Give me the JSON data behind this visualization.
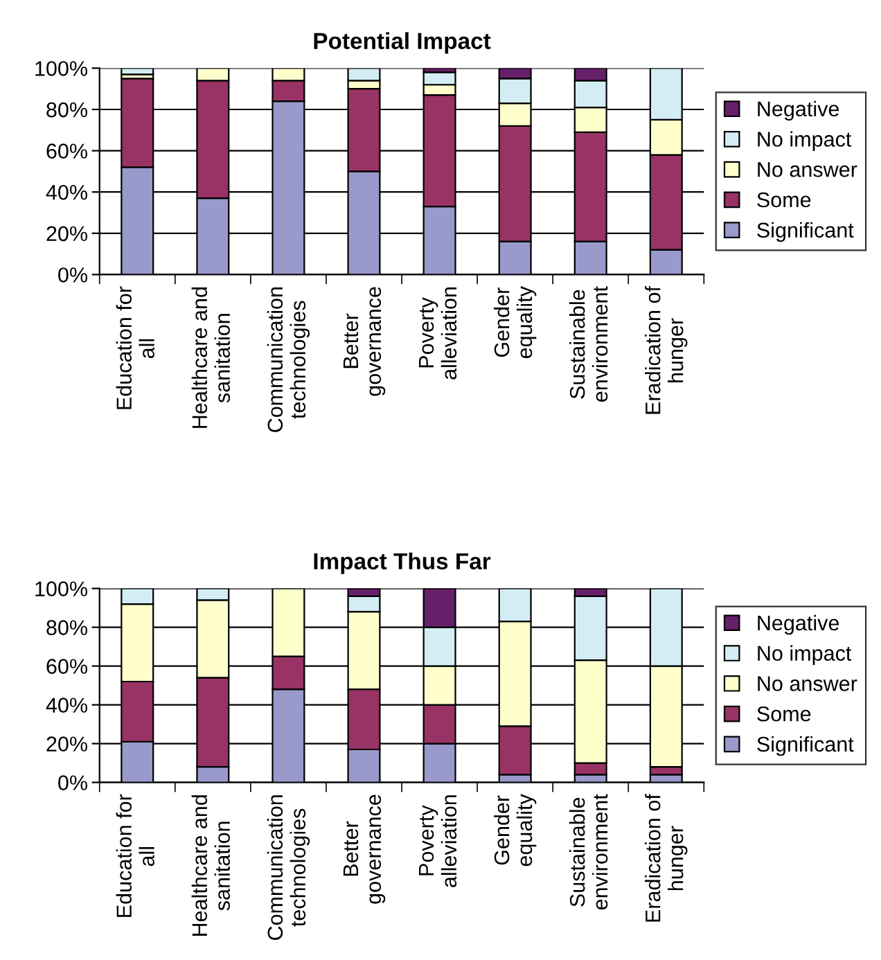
{
  "chart_data": [
    {
      "type": "bar",
      "title": "Potential Impact",
      "stacked": true,
      "grid": "y",
      "legend": "right",
      "categories": [
        "Education for\nall",
        "Healthcare and\nsanitation",
        "Communication\ntechnologies",
        "Better\ngovernance",
        "Poverty\nalleviation",
        "Gender\nequality",
        "Sustainable\nenvironment",
        "Eradication of\nhunger"
      ],
      "series": [
        {
          "name": "Significant",
          "color": "#9999cc",
          "values": [
            52,
            37,
            84,
            50,
            33,
            16,
            16,
            12
          ]
        },
        {
          "name": "Some",
          "color": "#993366",
          "values": [
            43,
            57,
            10,
            40,
            54,
            56,
            53,
            46
          ]
        },
        {
          "name": "No answer",
          "color": "#ffffcc",
          "values": [
            2,
            6,
            6,
            4,
            5,
            11,
            12,
            17
          ]
        },
        {
          "name": "No impact",
          "color": "#d4edf4",
          "values": [
            3,
            null,
            null,
            6,
            6,
            12,
            13,
            25
          ]
        },
        {
          "name": "Negative",
          "color": "#66206a",
          "values": [
            null,
            null,
            null,
            null,
            2,
            5,
            6,
            null
          ]
        }
      ],
      "ylim": [
        0,
        100
      ],
      "yticks": [
        {
          "value": 0,
          "label": "0%"
        },
        {
          "value": 20,
          "label": "20%"
        },
        {
          "value": 40,
          "label": "40%"
        },
        {
          "value": 60,
          "label": "60%"
        },
        {
          "value": 80,
          "label": "80%"
        },
        {
          "value": 100,
          "label": "100%"
        }
      ]
    },
    {
      "type": "bar",
      "title": "Impact Thus Far",
      "stacked": true,
      "grid": "y",
      "legend": "right",
      "categories": [
        "Education for\nall",
        "Healthcare and\nsanitation",
        "Communication\ntechnologies",
        "Better\ngovernance",
        "Poverty\nalleviation",
        "Gender\nequality",
        "Sustainable\nenvironment",
        "Eradication of\nhunger"
      ],
      "series": [
        {
          "name": "Significant",
          "color": "#9999cc",
          "values": [
            21,
            8,
            48,
            17,
            20,
            4,
            4,
            4
          ]
        },
        {
          "name": "Some",
          "color": "#993366",
          "values": [
            31,
            46,
            17,
            31,
            20,
            25,
            6,
            4
          ]
        },
        {
          "name": "No answer",
          "color": "#ffffcc",
          "values": [
            40,
            40,
            35,
            40,
            20,
            54,
            53,
            52
          ]
        },
        {
          "name": "No impact",
          "color": "#d4edf4",
          "values": [
            8,
            6,
            null,
            8,
            20,
            17,
            33,
            40
          ]
        },
        {
          "name": "Negative",
          "color": "#66206a",
          "values": [
            null,
            null,
            null,
            4,
            20,
            null,
            4,
            null
          ]
        }
      ],
      "ylim": [
        0,
        100
      ],
      "yticks": [
        {
          "value": 0,
          "label": "0%"
        },
        {
          "value": 20,
          "label": "20%"
        },
        {
          "value": 40,
          "label": "40%"
        },
        {
          "value": 60,
          "label": "60%"
        },
        {
          "value": 80,
          "label": "80%"
        },
        {
          "value": 100,
          "label": "100%"
        }
      ]
    }
  ]
}
